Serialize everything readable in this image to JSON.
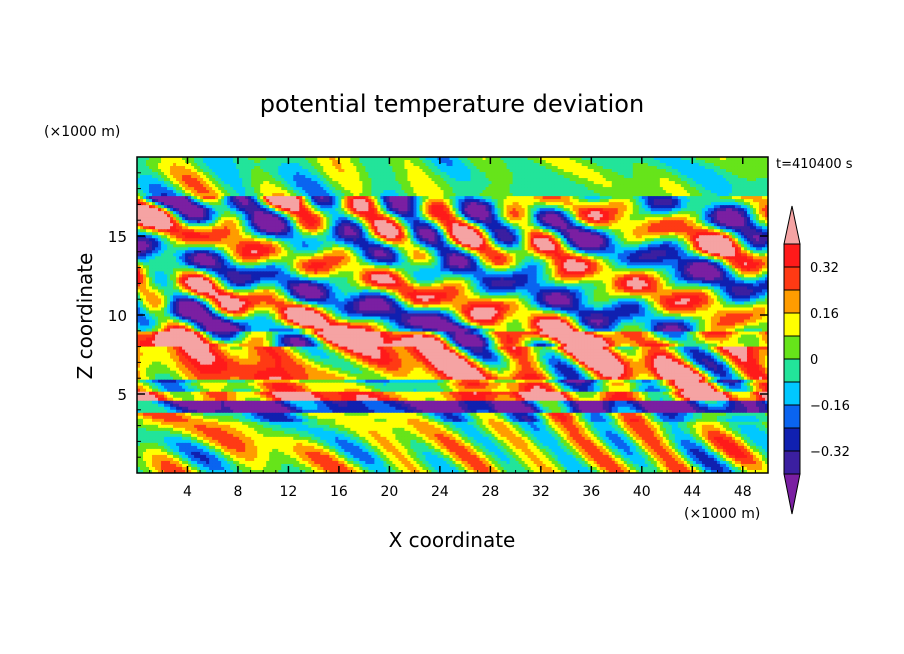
{
  "chart_data": {
    "type": "heatmap",
    "title": "potential temperature deviation",
    "xlabel": "X coordinate",
    "ylabel": "Z coordinate",
    "x_unit": "(×1000 m)",
    "y_unit": "(×1000 m)",
    "time_label": "t=410400 s",
    "xlim": [
      0,
      50
    ],
    "ylim": [
      0,
      20
    ],
    "x_ticks": [
      4,
      8,
      12,
      16,
      20,
      24,
      28,
      32,
      36,
      40,
      44,
      48
    ],
    "x_tick_labels": [
      "4",
      "8",
      "12",
      "16",
      "20",
      "24",
      "28",
      "32",
      "36",
      "40",
      "44",
      "48"
    ],
    "y_ticks": [
      5,
      10,
      15
    ],
    "y_tick_labels": [
      "5",
      "10",
      "15"
    ],
    "colorbar": {
      "levels": [
        -0.4,
        -0.32,
        -0.24,
        -0.16,
        -0.08,
        0,
        0.08,
        0.16,
        0.24,
        0.32,
        0.4
      ],
      "tick_values": [
        0.32,
        0.16,
        0,
        -0.16,
        -0.32
      ],
      "tick_labels": [
        "0.32",
        "0.16",
        "0",
        "−0.16",
        "−0.32"
      ],
      "colors_low_to_high": [
        "#7a1fa2",
        "#3b1fa0",
        "#1020b0",
        "#0a64f0",
        "#00c8ff",
        "#22e49a",
        "#66e41a",
        "#ffff00",
        "#ff9c00",
        "#ff3a14",
        "#ff1a1a",
        "#f5a3a3"
      ],
      "extend": "both"
    }
  }
}
